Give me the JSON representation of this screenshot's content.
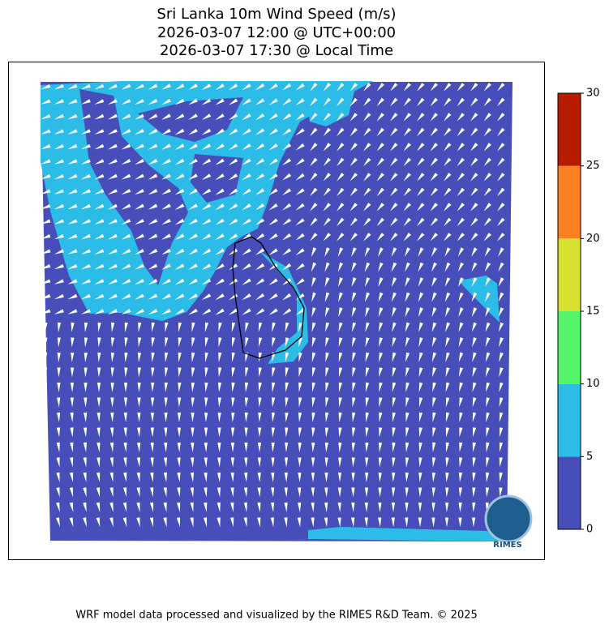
{
  "title": [
    "Sri Lanka 10m Wind Speed (m/s)",
    "2026-03-07 12:00 @ UTC+00:00",
    "2026-03-07 17:30 @ Local Time"
  ],
  "colorbar": {
    "lim": [
      0,
      30
    ],
    "ticks": [
      0,
      5,
      10,
      15,
      20,
      25,
      30
    ],
    "colors": [
      "#474eba",
      "#2bbce8",
      "#55f56b",
      "#d8e02e",
      "#fc8122",
      "#b81c00"
    ]
  },
  "logo": "RIMES",
  "footer": "WRF model data processed and visualized by the RIMES R&D Team. © 2025"
}
